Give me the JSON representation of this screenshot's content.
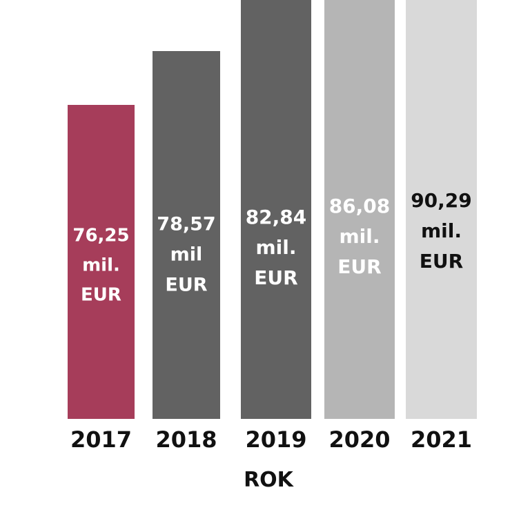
{
  "chart_data": {
    "type": "bar",
    "categories": [
      "2017",
      "2018",
      "2019",
      "2020",
      "2021"
    ],
    "values": [
      76.25,
      78.57,
      82.84,
      86.08,
      90.29
    ],
    "unit": "mil. EUR",
    "data_labels": [
      [
        "76,25",
        "mil.",
        "EUR"
      ],
      [
        "78,57",
        "mil",
        "EUR"
      ],
      [
        "82,84",
        "mil.",
        "EUR"
      ],
      [
        "86,08",
        "mil.",
        "EUR"
      ],
      [
        "90,29",
        "mil.",
        "EUR"
      ]
    ],
    "bar_colors": [
      "#a63d5a",
      "#626262",
      "#626262",
      "#b5b5b5",
      "#d9d9d9"
    ],
    "label_colors": [
      "#ffffff",
      "#ffffff",
      "#ffffff",
      "#ffffff",
      "#111111"
    ],
    "xlabel": "ROK",
    "ylabel": "",
    "title": "",
    "grid": false,
    "legend": "none"
  }
}
